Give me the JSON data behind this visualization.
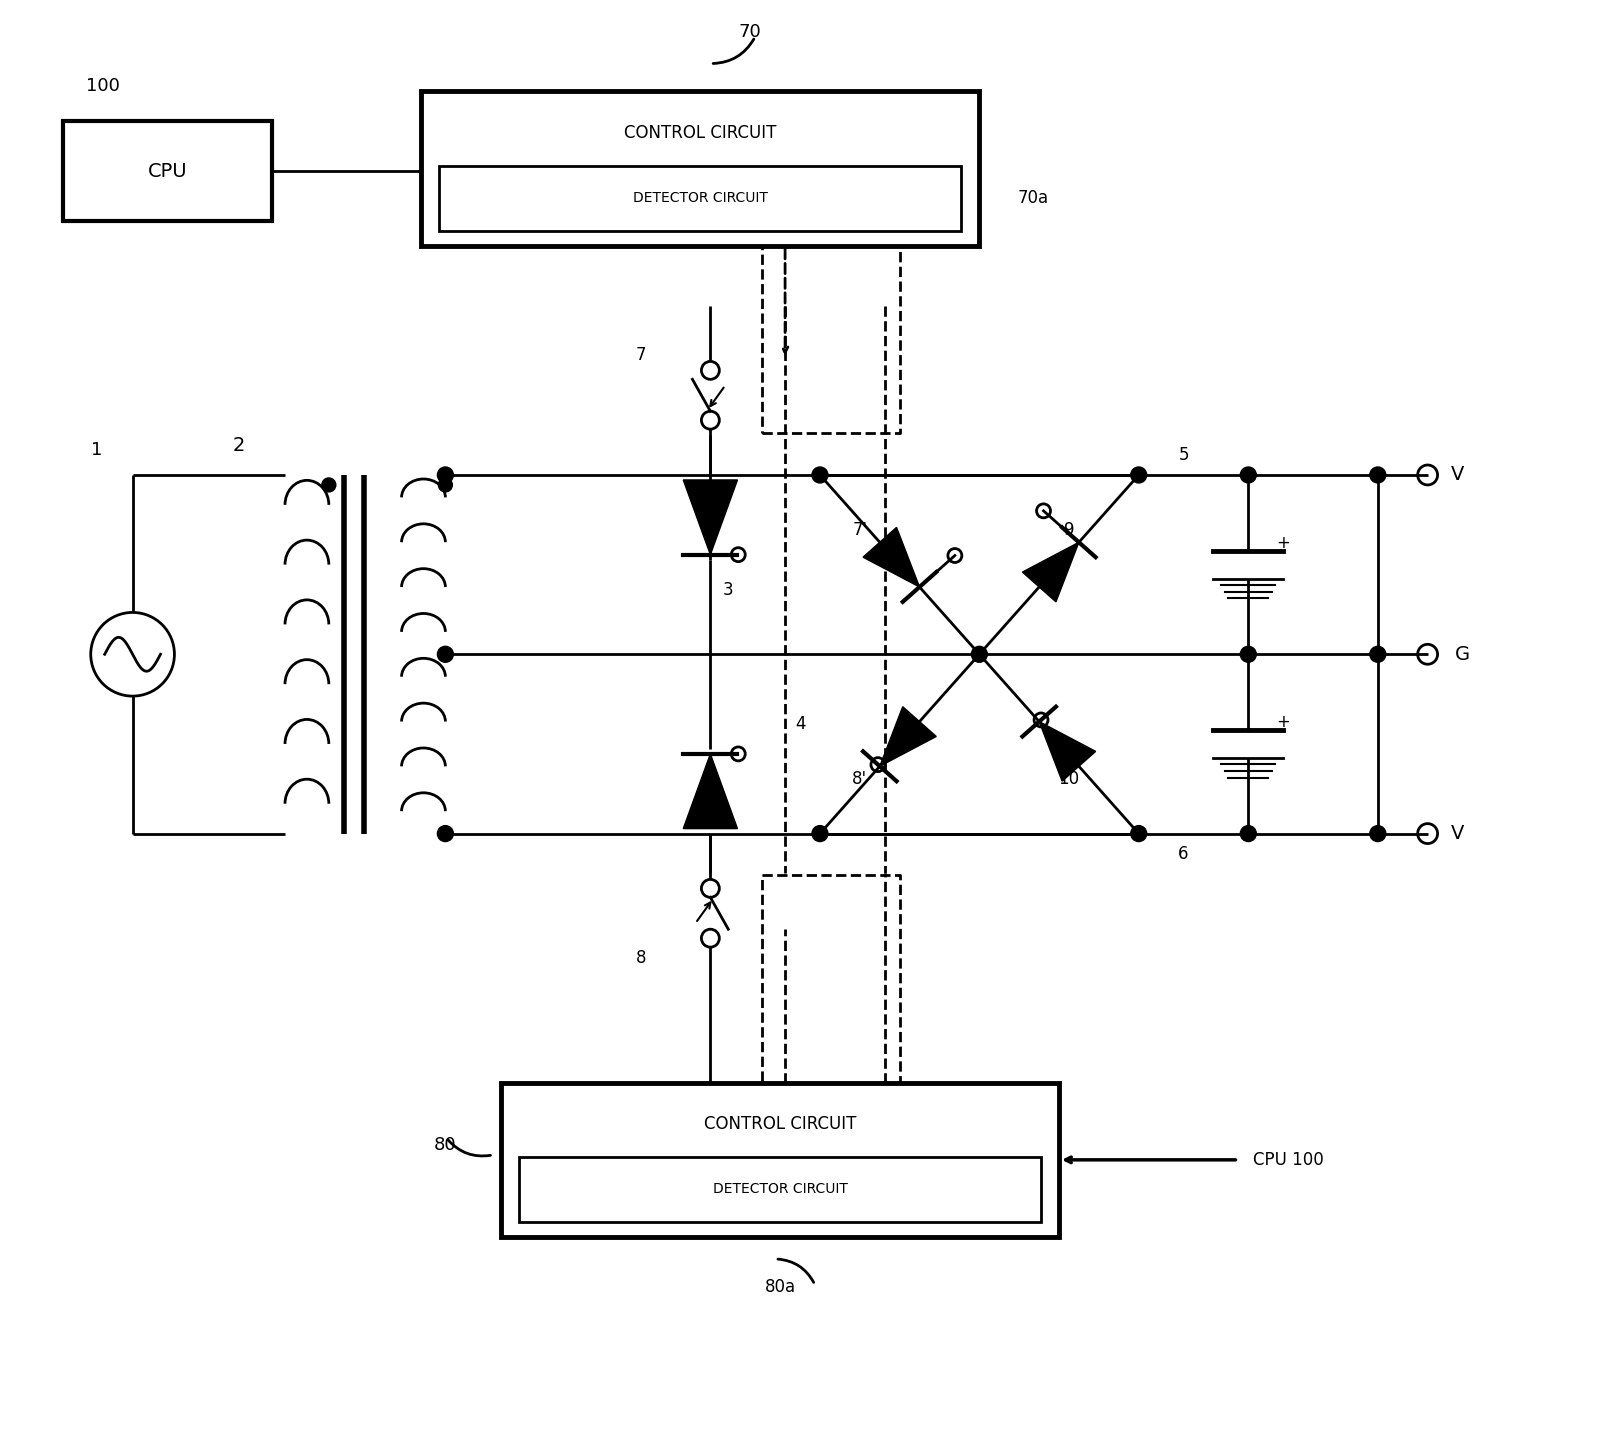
{
  "bg_color": "#ffffff",
  "line_color": "#000000",
  "lw": 2.0,
  "tlw": 3.5,
  "figsize": [
    16.14,
    14.54
  ],
  "dpi": 100,
  "labels": {
    "cpu_top": "100",
    "cpu_text": "CPU",
    "ctrl_top_num": "70",
    "ctrl_top_text1": "CONTROL CIRCUIT",
    "ctrl_top_text2": "DETECTOR CIRCUIT",
    "label_70a": "70a",
    "label_7": "7",
    "label_7p": "7'",
    "label_3": "3",
    "label_9": "9",
    "label_4": "4",
    "label_8p": "8'",
    "label_10": "10",
    "label_8": "8",
    "label_1": "1",
    "label_2": "2",
    "label_5": "5",
    "label_6": "6",
    "label_V_top": "V",
    "label_G": "G",
    "label_V_bot": "V",
    "label_plus_top": "+",
    "label_plus_bot": "+",
    "ctrl_bot_num": "80",
    "ctrl_bot_text1": "CONTROL CIRCUIT",
    "ctrl_bot_text2": "DETECTOR CIRCUIT",
    "label_80a": "80a",
    "label_cpu100": "CPU 100"
  }
}
